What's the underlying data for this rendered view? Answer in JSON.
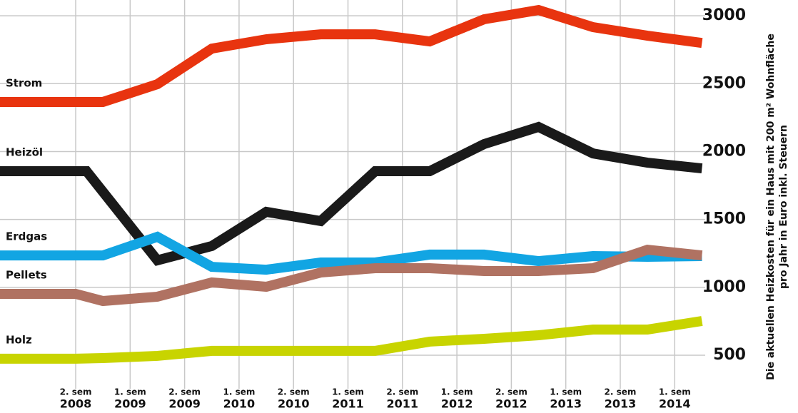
{
  "chart_data": {
    "type": "line",
    "ylabel": [
      "Die aktuellen Heizkosten für ein Haus mit 200 m² Wohnfläche",
      "pro Jahr in Euro inkl. Steuern"
    ],
    "xlim": [
      -0.39,
      12.56
    ],
    "xticks": [
      {
        "value": 1,
        "label": [
          "2. sem",
          "2008"
        ]
      },
      {
        "value": 2,
        "label": [
          "1. sem",
          "2009"
        ]
      },
      {
        "value": 3,
        "label": [
          "2. sem",
          "2009"
        ]
      },
      {
        "value": 4,
        "label": [
          "1. sem",
          "2010"
        ]
      },
      {
        "value": 5,
        "label": [
          "2. sem",
          "2010"
        ]
      },
      {
        "value": 6,
        "label": [
          "1. sem",
          "2011"
        ]
      },
      {
        "value": 7,
        "label": [
          "2. sem",
          "2011"
        ]
      },
      {
        "value": 8,
        "label": [
          "1. sem",
          "2012"
        ]
      },
      {
        "value": 9,
        "label": [
          "2. sem",
          "2012"
        ]
      },
      {
        "value": 10,
        "label": [
          "1. sem",
          "2013"
        ]
      },
      {
        "value": 11,
        "label": [
          "2. sem",
          "2013"
        ]
      },
      {
        "value": 12,
        "label": [
          "1. sem",
          "2014"
        ]
      }
    ],
    "ylim": [
      253,
      3116
    ],
    "yticks": [
      500,
      1000,
      1500,
      2000,
      2500,
      3000
    ],
    "grid": true,
    "series": [
      {
        "name": "Strom",
        "color": "#e8340f",
        "x": [
          -0.39,
          1.5,
          2.5,
          3.5,
          4.5,
          5.5,
          6.5,
          7.5,
          8.5,
          9.5,
          10.5,
          11.5,
          12.5
        ],
        "values": [
          2365,
          2365,
          2496,
          2758,
          2827,
          2863,
          2863,
          2811,
          2974,
          3042,
          2916,
          2853,
          2800
        ]
      },
      {
        "name": "Heizöl",
        "color": "#1a1a1a",
        "x": [
          -0.39,
          1.2,
          2.5,
          3.5,
          4.5,
          5.5,
          6.5,
          7.5,
          8.5,
          9.5,
          10.5,
          11.5,
          12.5
        ],
        "values": [
          1855,
          1855,
          1199,
          1304,
          1556,
          1488,
          1855,
          1855,
          2055,
          2181,
          1986,
          1918,
          1876
        ]
      },
      {
        "name": "Erdgas",
        "color": "#12a5e3",
        "x": [
          -0.39,
          1.5,
          2.5,
          3.5,
          4.5,
          5.5,
          6.5,
          7.5,
          8.5,
          9.5,
          10.5,
          11.5,
          12.5
        ],
        "values": [
          1235,
          1235,
          1372,
          1151,
          1130,
          1183,
          1183,
          1241,
          1241,
          1193,
          1230,
          1225,
          1230
        ]
      },
      {
        "name": "Pellets",
        "color": "#b07262",
        "x": [
          -0.39,
          1,
          1.5,
          2.5,
          3.5,
          4.5,
          5.5,
          6.5,
          7.5,
          8.5,
          9.5,
          10.5,
          11.5,
          12.5
        ],
        "values": [
          952,
          952,
          899,
          931,
          1036,
          1004,
          1109,
          1141,
          1141,
          1120,
          1120,
          1141,
          1277,
          1235
        ]
      },
      {
        "name": "Holz",
        "color": "#c8d400",
        "x": [
          -0.39,
          1,
          1.5,
          2.5,
          3.5,
          4.5,
          5.5,
          6.5,
          7.5,
          8.5,
          9.5,
          10.5,
          11.5,
          12.5
        ],
        "values": [
          474,
          474,
          479,
          495,
          532,
          532,
          532,
          532,
          600,
          621,
          647,
          689,
          689,
          752
        ]
      }
    ]
  }
}
